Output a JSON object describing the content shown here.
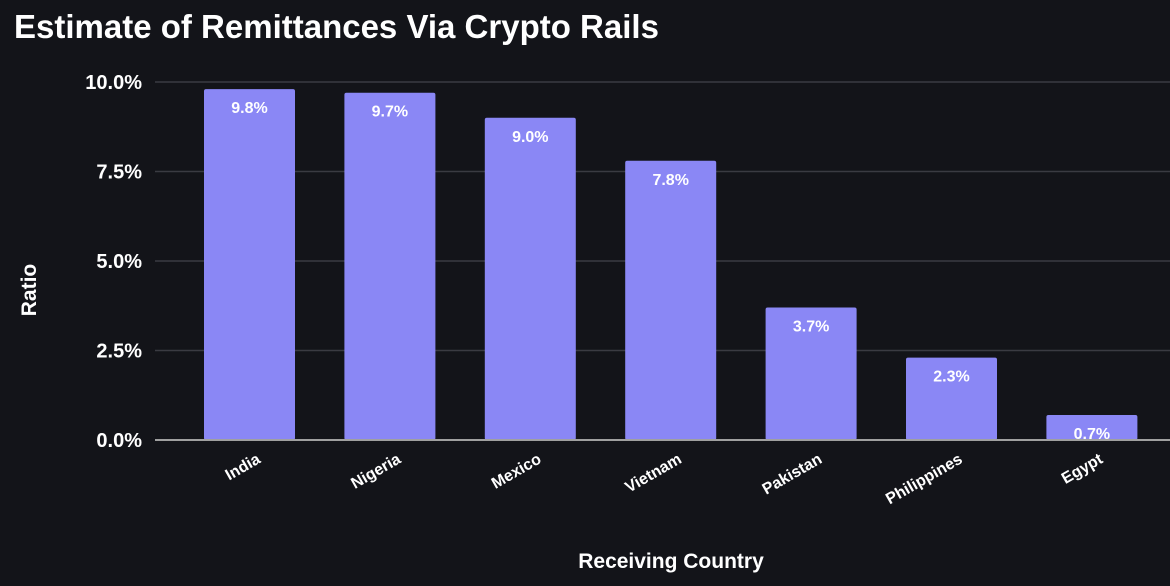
{
  "chart_data": {
    "type": "bar",
    "title": "Estimate of Remittances Via Crypto Rails",
    "xlabel": "Receiving Country",
    "ylabel": "Ratio",
    "categories": [
      "India",
      "Nigeria",
      "Mexico",
      "Vietnam",
      "Pakistan",
      "Philippines",
      "Egypt"
    ],
    "values": [
      9.8,
      9.7,
      9.0,
      7.8,
      3.7,
      2.3,
      0.7
    ],
    "data_labels": [
      "9.8%",
      "9.7%",
      "9.0%",
      "7.8%",
      "3.7%",
      "2.3%",
      "0.7%"
    ],
    "ylim": [
      0,
      10
    ],
    "yticks": [
      0,
      2.5,
      5,
      7.5,
      10
    ],
    "ytick_labels": [
      "0.0%",
      "2.5%",
      "5.0%",
      "7.5%",
      "10.0%"
    ],
    "grid": true,
    "legend": "none",
    "colors": {
      "bar": "#8a87f5",
      "background": "#131419",
      "grid": "#3a3b42",
      "axis": "#a0a0a0"
    }
  }
}
